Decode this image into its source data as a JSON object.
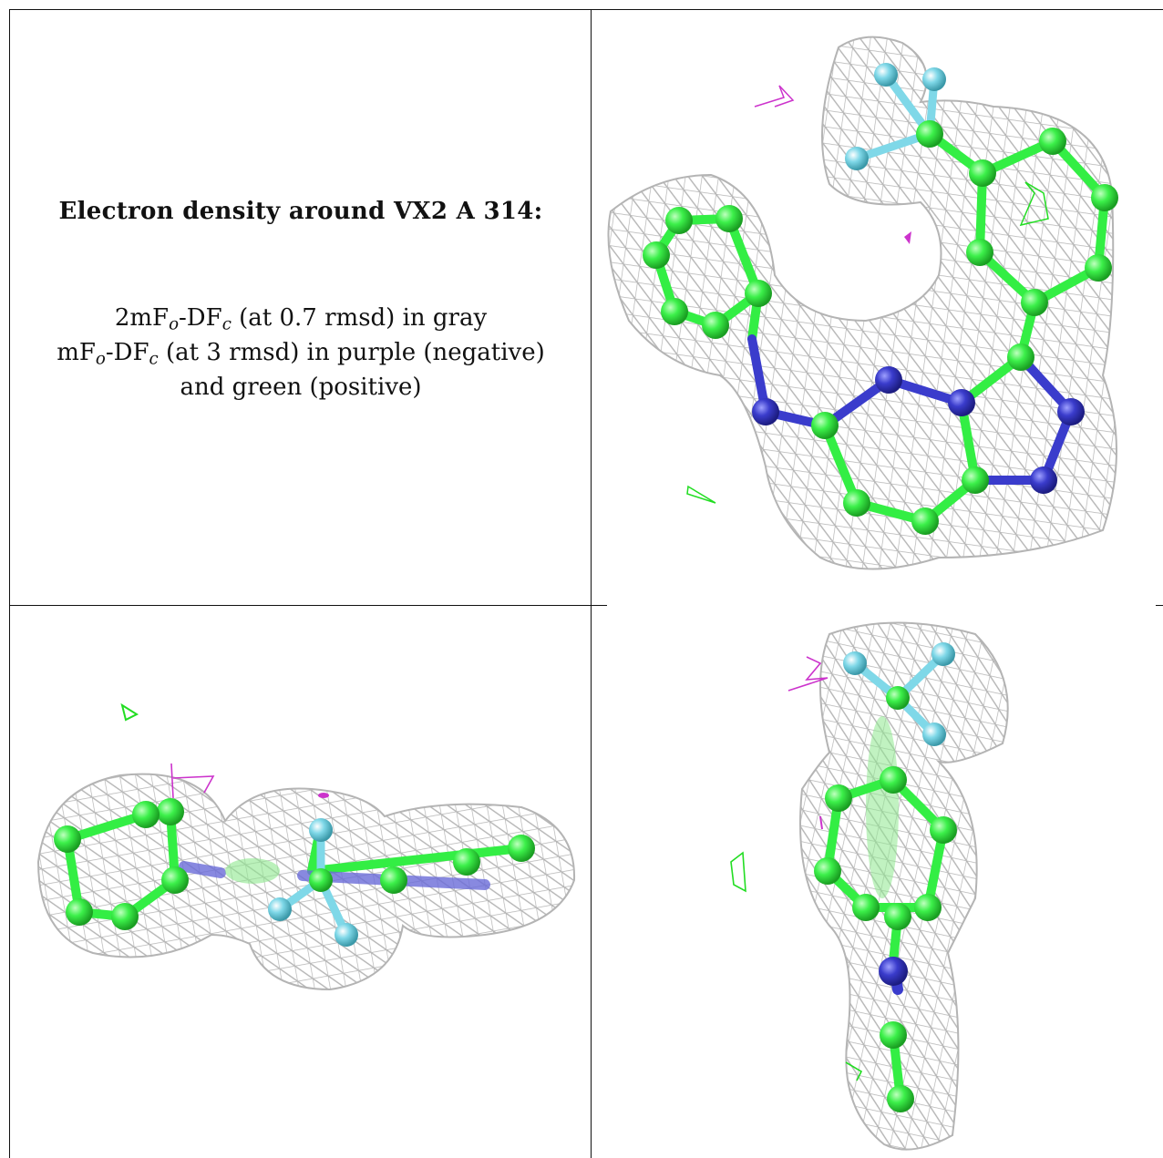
{
  "caption": {
    "title": "Electron density around VX2 A 314:",
    "line1": {
      "prefix": "2mF",
      "sub1": "o",
      "mid": "-DF",
      "sub2": "c",
      "suffix": " (at 0.7 rmsd) in gray"
    },
    "line2": {
      "prefix": "mF",
      "sub1": "o",
      "mid": "-DF",
      "sub2": "c",
      "suffix": " (at 3 rmsd) in purple (negative)"
    },
    "line3": "and green (positive)"
  },
  "colors": {
    "mesh_2fofc": "#b4b4b4",
    "mesh_fofc_negative": "#cc33cc",
    "mesh_fofc_positive": "#22dd22",
    "carbon": "#33ee44",
    "nitrogen": "#3a3ccc",
    "fluorine": "#7fd8e8",
    "grid_lines": "#111111"
  },
  "panels": [
    {
      "view": "top",
      "icon": "ligand-density-view-top-icon"
    },
    {
      "view": "side",
      "icon": "ligand-density-view-side-icon"
    },
    {
      "view": "end",
      "icon": "ligand-density-view-end-icon"
    }
  ]
}
